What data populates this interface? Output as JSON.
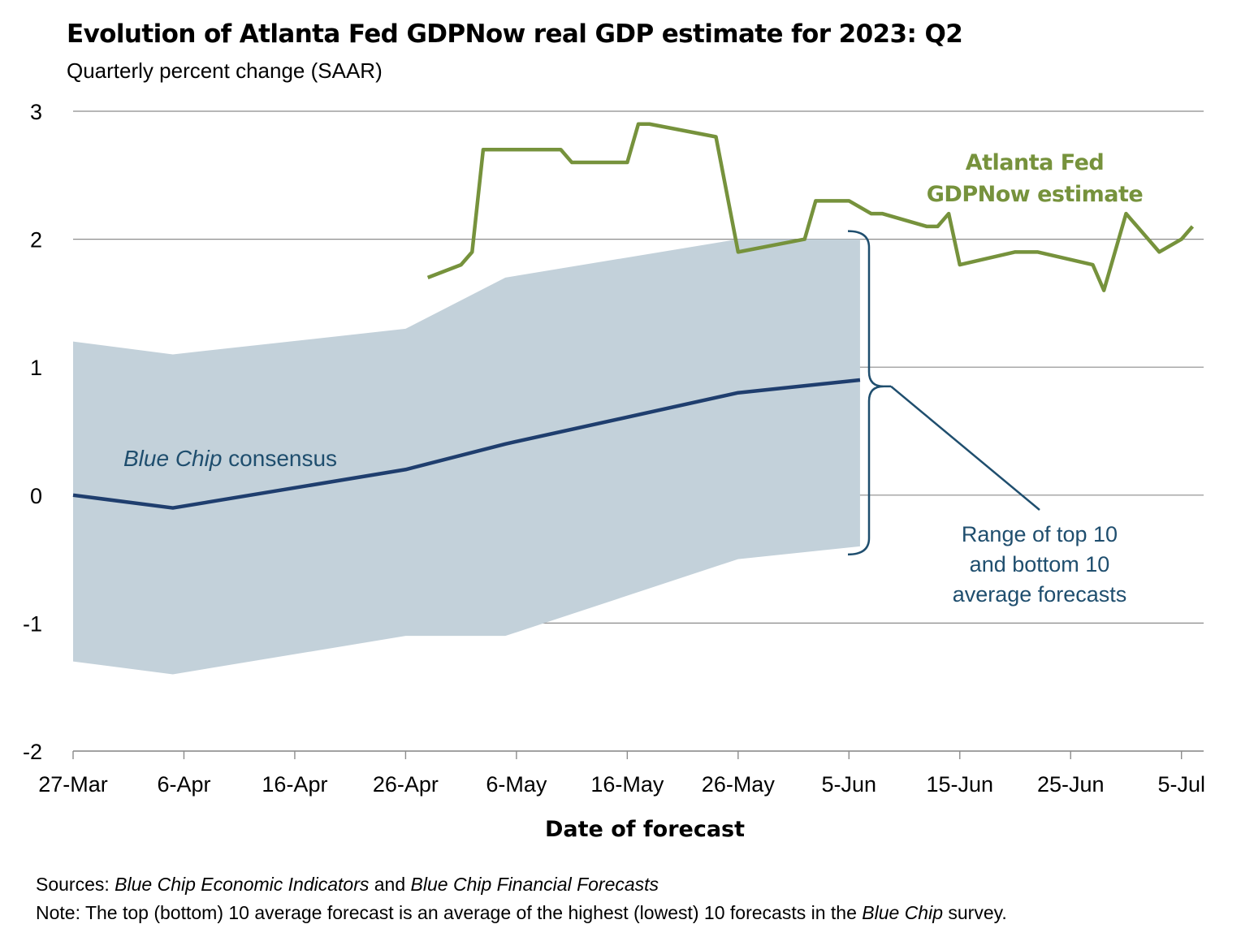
{
  "title": "Evolution of Atlanta Fed GDPNow real GDP estimate for 2023: Q2",
  "subtitle": "Quarterly percent change (SAAR)",
  "footer": {
    "sources_label": "Sources:",
    "sources_part1": "Blue Chip Economic Indicators",
    "sources_and": " and ",
    "sources_part2": "Blue Chip Financial Forecasts",
    "note_label": "Note:",
    "note_text_1": " The top (bottom) 10 average forecast is an average of the highest (lowest) 10 forecasts in the ",
    "note_italic": "Blue Chip",
    "note_text_2": " survey."
  },
  "colors": {
    "gdpnow": "#76923c",
    "consensus": "#1f3e6e",
    "range": "#c3d1da",
    "annotation": "#1f4e6e",
    "grid": "#8c8c8c"
  },
  "chart_data": {
    "type": "line",
    "xlabel": "Date of forecast",
    "ylabel": "",
    "ylim": [
      -2,
      3
    ],
    "yticks": [
      -2,
      -1,
      0,
      1,
      2,
      3
    ],
    "xlim": [
      "2023-03-27",
      "2023-07-07"
    ],
    "xticks": [
      "2023-03-27",
      "2023-04-06",
      "2023-04-16",
      "2023-04-26",
      "2023-05-06",
      "2023-05-16",
      "2023-05-26",
      "2023-06-05",
      "2023-06-15",
      "2023-06-25",
      "2023-07-05"
    ],
    "xtick_labels": [
      "27-Mar",
      "6-Apr",
      "16-Apr",
      "26-Apr",
      "6-May",
      "16-May",
      "26-May",
      "5-Jun",
      "15-Jun",
      "25-Jun",
      "5-Jul"
    ],
    "grid": "horizontal",
    "series": [
      {
        "name": "Atlanta Fed GDPNow estimate",
        "label_lines": [
          "Atlanta Fed",
          "GDPNow estimate"
        ],
        "kind": "line",
        "points": [
          [
            "2023-04-28",
            1.7
          ],
          [
            "2023-05-01",
            1.8
          ],
          [
            "2023-05-02",
            1.9
          ],
          [
            "2023-05-03",
            2.7
          ],
          [
            "2023-05-10",
            2.7
          ],
          [
            "2023-05-11",
            2.6
          ],
          [
            "2023-05-16",
            2.6
          ],
          [
            "2023-05-17",
            2.9
          ],
          [
            "2023-05-18",
            2.9
          ],
          [
            "2023-05-24",
            2.8
          ],
          [
            "2023-05-26",
            1.9
          ],
          [
            "2023-06-01",
            2.0
          ],
          [
            "2023-06-02",
            2.3
          ],
          [
            "2023-06-05",
            2.3
          ],
          [
            "2023-06-07",
            2.2
          ],
          [
            "2023-06-08",
            2.2
          ],
          [
            "2023-06-12",
            2.1
          ],
          [
            "2023-06-13",
            2.1
          ],
          [
            "2023-06-14",
            2.2
          ],
          [
            "2023-06-15",
            1.8
          ],
          [
            "2023-06-20",
            1.9
          ],
          [
            "2023-06-22",
            1.9
          ],
          [
            "2023-06-27",
            1.8
          ],
          [
            "2023-06-28",
            1.6
          ],
          [
            "2023-06-30",
            2.2
          ],
          [
            "2023-07-03",
            1.9
          ],
          [
            "2023-07-05",
            2.0
          ],
          [
            "2023-07-06",
            2.1
          ]
        ]
      },
      {
        "name": "Blue Chip consensus",
        "label_italic": "Blue Chip",
        "label_rest": " consensus",
        "kind": "line",
        "points": [
          [
            "2023-03-27",
            0.0
          ],
          [
            "2023-04-05",
            -0.1
          ],
          [
            "2023-04-26",
            0.2
          ],
          [
            "2023-05-05",
            0.4
          ],
          [
            "2023-05-26",
            0.8
          ],
          [
            "2023-06-06",
            0.9
          ]
        ]
      },
      {
        "name": "Range of top 10 and bottom 10 average forecasts",
        "label_lines": [
          "Range of top 10",
          "and bottom 10",
          "average forecasts"
        ],
        "kind": "band",
        "upper": [
          [
            "2023-03-27",
            1.2
          ],
          [
            "2023-04-05",
            1.1
          ],
          [
            "2023-04-26",
            1.3
          ],
          [
            "2023-05-05",
            1.7
          ],
          [
            "2023-05-26",
            2.0
          ],
          [
            "2023-06-06",
            2.0
          ]
        ],
        "lower": [
          [
            "2023-03-27",
            -1.3
          ],
          [
            "2023-04-05",
            -1.4
          ],
          [
            "2023-04-26",
            -1.1
          ],
          [
            "2023-05-05",
            -1.1
          ],
          [
            "2023-05-26",
            -0.5
          ],
          [
            "2023-06-06",
            -0.4
          ]
        ]
      }
    ]
  }
}
